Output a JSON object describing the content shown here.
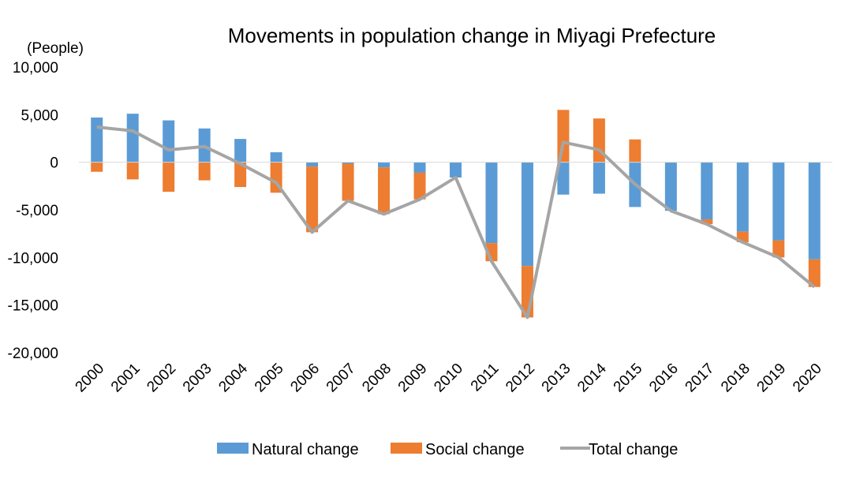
{
  "chart_data": {
    "type": "bar",
    "title": "Movements in population change in Miyagi Prefecture",
    "ylabel": "(People)",
    "xlabel": "",
    "ylim": [
      -20000,
      10000
    ],
    "yticks": [
      10000,
      5000,
      0,
      -5000,
      -10000,
      -15000,
      -20000
    ],
    "ytick_labels": [
      "10,000",
      "5,000",
      "0",
      "-5,000",
      "-10,000",
      "-15,000",
      "-20,000"
    ],
    "grid": false,
    "legend_position": "bottom",
    "categories": [
      "2000",
      "2001",
      "2002",
      "2003",
      "2004",
      "2005",
      "2006",
      "2007",
      "2008",
      "2009",
      "2010",
      "2011",
      "2012",
      "2013",
      "2014",
      "2015",
      "2016",
      "2017",
      "2018",
      "2019",
      "2020"
    ],
    "series": [
      {
        "name": "Natural change",
        "kind": "bar",
        "color": "#5b9bd5",
        "values": [
          4700,
          5100,
          4400,
          3550,
          2450,
          1050,
          -450,
          -150,
          -550,
          -1100,
          -1600,
          -8500,
          -10900,
          -3400,
          -3300,
          -4700,
          -5100,
          -6000,
          -7300,
          -8200,
          -10200
        ]
      },
      {
        "name": "Social change",
        "kind": "bar",
        "color": "#ed7d31",
        "values": [
          -1000,
          -1800,
          -3100,
          -1900,
          -2600,
          -3200,
          -6900,
          -3900,
          -4900,
          -2800,
          0,
          -1900,
          -5400,
          5500,
          4600,
          2400,
          0,
          -500,
          -1100,
          -1800,
          -2900
        ]
      },
      {
        "name": "Total change",
        "kind": "line",
        "color": "#a5a5a5",
        "values": [
          3700,
          3300,
          1300,
          1650,
          -150,
          -2150,
          -7350,
          -4050,
          -5450,
          -3900,
          -1600,
          -10400,
          -16300,
          2100,
          1300,
          -2300,
          -5100,
          -6500,
          -8400,
          -10000,
          -13100
        ]
      }
    ]
  }
}
